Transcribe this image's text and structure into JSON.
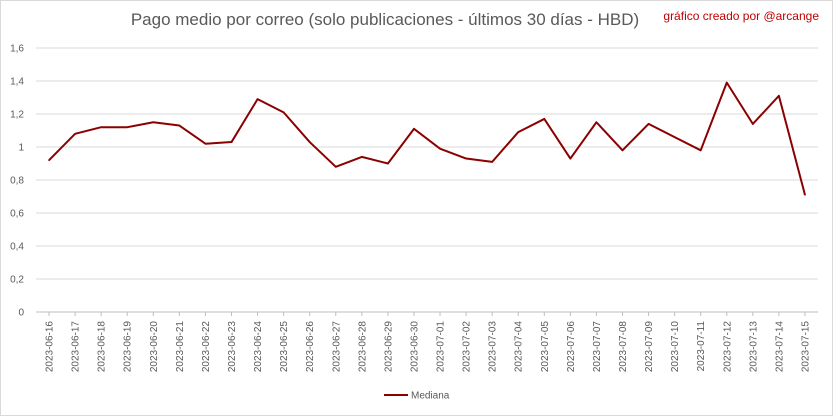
{
  "chart_data": {
    "type": "line",
    "title": "Pago medio por correo (solo publicaciones - últimos 30 días - HBD)",
    "credit": "gráfico creado por @arcange",
    "ylim": [
      0,
      1.6
    ],
    "yticks": [
      "0",
      "0,2",
      "0,4",
      "0,6",
      "0,8",
      "1",
      "1,2",
      "1,4",
      "1,6"
    ],
    "grid": "horizontal",
    "legend_position": "bottom",
    "line_color": "#8b0000",
    "categories": [
      "2023-06-16",
      "2023-06-17",
      "2023-06-18",
      "2023-06-19",
      "2023-06-20",
      "2023-06-21",
      "2023-06-22",
      "2023-06-23",
      "2023-06-24",
      "2023-06-25",
      "2023-06-26",
      "2023-06-27",
      "2023-06-28",
      "2023-06-29",
      "2023-06-30",
      "2023-07-01",
      "2023-07-02",
      "2023-07-03",
      "2023-07-04",
      "2023-07-05",
      "2023-07-06",
      "2023-07-07",
      "2023-07-08",
      "2023-07-09",
      "2023-07-10",
      "2023-07-11",
      "2023-07-12",
      "2023-07-13",
      "2023-07-14",
      "2023-07-15"
    ],
    "series": [
      {
        "name": "Mediana",
        "values": [
          0.92,
          1.08,
          1.12,
          1.12,
          1.15,
          1.13,
          1.02,
          1.03,
          1.29,
          1.21,
          1.03,
          0.88,
          0.94,
          0.9,
          1.11,
          0.99,
          0.93,
          0.91,
          1.09,
          1.17,
          0.93,
          1.15,
          0.98,
          1.14,
          1.06,
          0.98,
          1.39,
          1.14,
          1.31,
          0.71
        ]
      }
    ]
  }
}
